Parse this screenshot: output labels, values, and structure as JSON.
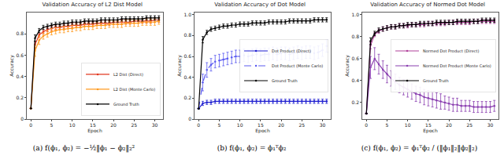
{
  "chart_data": [
    {
      "type": "line",
      "title": "Validation Accuracy of L2 Dist Model",
      "x_label": "Epoch",
      "y_label": "Accuracy",
      "caption": "(a) f(ϕ₁, ϕ₂) = −½‖ϕ₁ − ϕ₂‖₂²",
      "x": [
        0,
        1,
        2,
        3,
        4,
        5,
        6,
        7,
        8,
        9,
        10,
        11,
        12,
        13,
        14,
        15,
        16,
        17,
        18,
        19,
        20,
        21,
        22,
        23,
        24,
        25,
        26,
        27,
        28,
        29,
        30,
        31
      ],
      "xlim": [
        -1,
        32
      ],
      "xticks": [
        0,
        5,
        10,
        15,
        20,
        25,
        30
      ],
      "ylim": [
        0,
        1
      ],
      "yticks": [
        0,
        0.2,
        0.4,
        0.6,
        0.8
      ],
      "legend": "lower right",
      "grid": false,
      "series": [
        {
          "name": "L2 Dist (Direct)",
          "color": "#e2371f",
          "marker": "circle",
          "line_style": "solid",
          "values": [
            0.1,
            0.7,
            0.79,
            0.82,
            0.84,
            0.85,
            0.86,
            0.86,
            0.87,
            0.87,
            0.88,
            0.88,
            0.88,
            0.89,
            0.89,
            0.89,
            0.9,
            0.9,
            0.9,
            0.9,
            0.91,
            0.91,
            0.91,
            0.91,
            0.91,
            0.92,
            0.92,
            0.92,
            0.92,
            0.92,
            0.93,
            0.93
          ],
          "errors": [
            0,
            0.03,
            0.02,
            0.02,
            0.02,
            0.02,
            0.02,
            0.02,
            0.02,
            0.02,
            0.02,
            0.02,
            0.02,
            0.02,
            0.02,
            0.02,
            0.02,
            0.02,
            0.02,
            0.02,
            0.02,
            0.02,
            0.02,
            0.02,
            0.02,
            0.02,
            0.02,
            0.02,
            0.02,
            0.02,
            0.02,
            0.02
          ]
        },
        {
          "name": "L2 Dist (Monte Carlo)",
          "color": "#ff9a1f",
          "marker": "circle",
          "line_style": "solid",
          "values": [
            0.1,
            0.64,
            0.74,
            0.78,
            0.8,
            0.82,
            0.83,
            0.84,
            0.84,
            0.85,
            0.85,
            0.86,
            0.86,
            0.87,
            0.87,
            0.87,
            0.88,
            0.88,
            0.88,
            0.89,
            0.89,
            0.89,
            0.89,
            0.9,
            0.9,
            0.9,
            0.9,
            0.91,
            0.91,
            0.91,
            0.91,
            0.92
          ],
          "errors": [
            0,
            0.05,
            0.04,
            0.03,
            0.03,
            0.03,
            0.03,
            0.03,
            0.03,
            0.03,
            0.03,
            0.03,
            0.03,
            0.03,
            0.03,
            0.03,
            0.03,
            0.03,
            0.03,
            0.03,
            0.03,
            0.03,
            0.03,
            0.03,
            0.03,
            0.03,
            0.03,
            0.03,
            0.03,
            0.03,
            0.03,
            0.03
          ]
        },
        {
          "name": "Ground Truth",
          "color": "#000000",
          "marker": "circle",
          "line_style": "solid",
          "values": [
            0.1,
            0.76,
            0.83,
            0.86,
            0.87,
            0.88,
            0.89,
            0.89,
            0.9,
            0.9,
            0.91,
            0.91,
            0.91,
            0.92,
            0.92,
            0.92,
            0.92,
            0.93,
            0.93,
            0.93,
            0.93,
            0.93,
            0.94,
            0.94,
            0.94,
            0.94,
            0.94,
            0.94,
            0.95,
            0.95,
            0.95,
            0.95
          ],
          "errors": [
            0,
            0.03,
            0.02,
            0.02,
            0.02,
            0.02,
            0.02,
            0.02,
            0.02,
            0.02,
            0.02,
            0.02,
            0.02,
            0.02,
            0.02,
            0.02,
            0.02,
            0.02,
            0.02,
            0.02,
            0.02,
            0.02,
            0.02,
            0.02,
            0.02,
            0.02,
            0.02,
            0.02,
            0.02,
            0.02,
            0.02,
            0.02
          ]
        }
      ]
    },
    {
      "type": "line",
      "title": "Validation Accuracy of Dot Model",
      "x_label": "Epoch",
      "y_label": "Accuracy",
      "caption": "(b) f(ϕ₁, ϕ₂) = ϕ₁ᵀϕ₂",
      "x": [
        0,
        1,
        2,
        3,
        4,
        5,
        6,
        7,
        8,
        9,
        10,
        11,
        12,
        13,
        14,
        15,
        16,
        17,
        18,
        19,
        20,
        21,
        22,
        23,
        24,
        25,
        26,
        27,
        28,
        29,
        30,
        31
      ],
      "xlim": [
        -1,
        32
      ],
      "xticks": [
        0,
        5,
        10,
        15,
        20,
        25,
        30
      ],
      "ylim": [
        0,
        1.02
      ],
      "yticks": [
        0,
        0.2,
        0.4,
        0.6,
        0.8,
        {
          "value": 1,
          "label": "1.0"
        }
      ],
      "legend": "center right",
      "grid": false,
      "series": [
        {
          "name": "Dot Product (Direct)",
          "color": "#1f1fd0",
          "marker": "circle",
          "line_style": "solid",
          "values": [
            0.1,
            0.15,
            0.16,
            0.16,
            0.17,
            0.17,
            0.17,
            0.17,
            0.17,
            0.17,
            0.17,
            0.17,
            0.17,
            0.17,
            0.17,
            0.17,
            0.17,
            0.17,
            0.17,
            0.17,
            0.17,
            0.17,
            0.17,
            0.17,
            0.17,
            0.17,
            0.17,
            0.17,
            0.17,
            0.17,
            0.17,
            0.17
          ],
          "errors": [
            0,
            0.02,
            0.02,
            0.02,
            0.02,
            0.02,
            0.02,
            0.02,
            0.02,
            0.02,
            0.02,
            0.02,
            0.02,
            0.02,
            0.02,
            0.02,
            0.02,
            0.02,
            0.02,
            0.02,
            0.02,
            0.02,
            0.02,
            0.02,
            0.02,
            0.02,
            0.02,
            0.02,
            0.02,
            0.02,
            0.02,
            0.02
          ]
        },
        {
          "name": "Dot Product (Monte Carlo)",
          "color": "#5a5af0",
          "marker": "circle",
          "line_style": "dashed",
          "values": [
            0.1,
            0.35,
            0.47,
            0.52,
            0.55,
            0.56,
            0.57,
            0.58,
            0.59,
            0.6,
            0.6,
            0.61,
            0.6,
            0.61,
            0.62,
            0.61,
            0.62,
            0.62,
            0.63,
            0.62,
            0.63,
            0.63,
            0.62,
            0.63,
            0.64,
            0.63,
            0.64,
            0.64,
            0.63,
            0.64,
            0.66,
            0.7
          ],
          "errors": [
            0,
            0.08,
            0.07,
            0.06,
            0.06,
            0.06,
            0.06,
            0.06,
            0.06,
            0.06,
            0.06,
            0.06,
            0.06,
            0.06,
            0.06,
            0.06,
            0.06,
            0.06,
            0.06,
            0.06,
            0.06,
            0.06,
            0.06,
            0.06,
            0.06,
            0.06,
            0.06,
            0.06,
            0.06,
            0.06,
            0.06,
            0.06
          ]
        },
        {
          "name": "Ground Truth",
          "color": "#000000",
          "marker": "circle",
          "line_style": "solid",
          "values": [
            0.1,
            0.76,
            0.83,
            0.86,
            0.87,
            0.88,
            0.89,
            0.89,
            0.9,
            0.9,
            0.91,
            0.91,
            0.91,
            0.92,
            0.92,
            0.92,
            0.92,
            0.93,
            0.93,
            0.93,
            0.93,
            0.93,
            0.94,
            0.94,
            0.94,
            0.94,
            0.94,
            0.94,
            0.95,
            0.95,
            0.95,
            0.95
          ],
          "errors": [
            0,
            0.03,
            0.02,
            0.02,
            0.02,
            0.02,
            0.02,
            0.02,
            0.02,
            0.02,
            0.02,
            0.02,
            0.02,
            0.02,
            0.02,
            0.02,
            0.02,
            0.02,
            0.02,
            0.02,
            0.02,
            0.02,
            0.02,
            0.02,
            0.02,
            0.02,
            0.02,
            0.02,
            0.02,
            0.02,
            0.02,
            0.02
          ]
        }
      ]
    },
    {
      "type": "line",
      "title": "Validation Accuracy of Normed Dot Model",
      "x_label": "Epoch",
      "y_label": "Accuracy",
      "caption": "(c) f(ϕ₁, ϕ₂) = ϕ₁ᵀϕ₂ / (‖ϕ₁‖₂‖ϕ₂‖₂)",
      "x": [
        0,
        1,
        2,
        3,
        4,
        5,
        6,
        7,
        8,
        9,
        10,
        11,
        12,
        13,
        14,
        15,
        16,
        17,
        18,
        19,
        20,
        21,
        22,
        23,
        24,
        25,
        26,
        27,
        28,
        29,
        30,
        31
      ],
      "xlim": [
        -1,
        32
      ],
      "xticks": [
        0,
        5,
        10,
        15,
        20,
        25,
        30
      ],
      "ylim": [
        0.05,
        1.02
      ],
      "yticks": [
        0.2,
        0.4,
        0.6,
        0.8,
        {
          "value": 1,
          "label": "1.0"
        }
      ],
      "legend": "center right",
      "grid": false,
      "series": [
        {
          "name": "Normed Dot Product (Direct)",
          "color": "#b0409a",
          "marker": "circle",
          "line_style": "solid",
          "values": [
            0.1,
            0.72,
            0.82,
            0.85,
            0.87,
            0.88,
            0.89,
            0.89,
            0.9,
            0.9,
            0.9,
            0.91,
            0.91,
            0.91,
            0.91,
            0.92,
            0.92,
            0.92,
            0.92,
            0.92,
            0.93,
            0.93,
            0.93,
            0.93,
            0.93,
            0.93,
            0.94,
            0.94,
            0.94,
            0.94,
            0.94,
            0.94
          ],
          "errors": [
            0,
            0.03,
            0.02,
            0.02,
            0.02,
            0.02,
            0.02,
            0.02,
            0.02,
            0.02,
            0.02,
            0.02,
            0.02,
            0.02,
            0.02,
            0.02,
            0.02,
            0.02,
            0.02,
            0.02,
            0.02,
            0.02,
            0.02,
            0.02,
            0.02,
            0.02,
            0.02,
            0.02,
            0.02,
            0.02,
            0.02,
            0.02
          ]
        },
        {
          "name": "Normed Dot Product (Monte Carlo)",
          "color": "#8a3fb0",
          "marker": "circle",
          "line_style": "solid",
          "values": [
            0.1,
            0.52,
            0.6,
            0.55,
            0.5,
            0.46,
            0.42,
            0.39,
            0.36,
            0.34,
            0.32,
            0.3,
            0.28,
            0.27,
            0.25,
            0.24,
            0.23,
            0.22,
            0.21,
            0.2,
            0.19,
            0.18,
            0.18,
            0.17,
            0.17,
            0.17,
            0.16,
            0.16,
            0.16,
            0.16,
            0.16,
            0.17
          ],
          "errors": [
            0,
            0.1,
            0.1,
            0.09,
            0.08,
            0.08,
            0.07,
            0.07,
            0.07,
            0.07,
            0.07,
            0.07,
            0.07,
            0.07,
            0.07,
            0.07,
            0.07,
            0.07,
            0.07,
            0.06,
            0.06,
            0.06,
            0.06,
            0.05,
            0.05,
            0.05,
            0.05,
            0.05,
            0.05,
            0.05,
            0.05,
            0.05
          ]
        },
        {
          "name": "Ground Truth",
          "color": "#000000",
          "marker": "circle",
          "line_style": "solid",
          "values": [
            0.1,
            0.76,
            0.83,
            0.86,
            0.87,
            0.88,
            0.89,
            0.89,
            0.9,
            0.9,
            0.91,
            0.91,
            0.91,
            0.92,
            0.92,
            0.92,
            0.92,
            0.93,
            0.93,
            0.93,
            0.93,
            0.93,
            0.94,
            0.94,
            0.94,
            0.94,
            0.94,
            0.94,
            0.95,
            0.95,
            0.95,
            0.95
          ],
          "errors": [
            0,
            0.03,
            0.02,
            0.02,
            0.02,
            0.02,
            0.02,
            0.02,
            0.02,
            0.02,
            0.02,
            0.02,
            0.02,
            0.02,
            0.02,
            0.02,
            0.02,
            0.02,
            0.02,
            0.02,
            0.02,
            0.02,
            0.02,
            0.02,
            0.02,
            0.02,
            0.02,
            0.02,
            0.02,
            0.02,
            0.02,
            0.02
          ]
        }
      ]
    }
  ]
}
